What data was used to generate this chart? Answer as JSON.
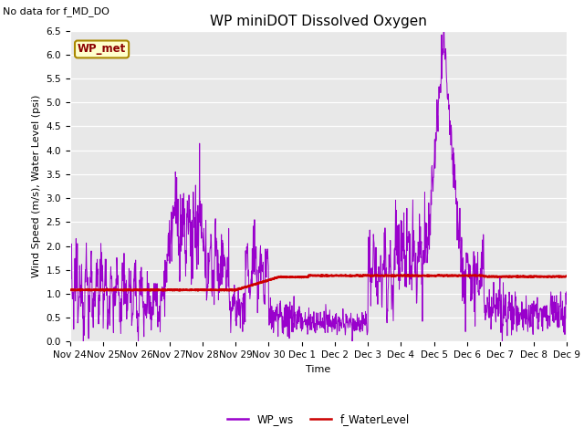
{
  "title": "WP miniDOT Dissolved Oxygen",
  "top_left_text": "No data for f_MD_DO",
  "ylabel": "Wind Speed (m/s), Water Level (psi)",
  "xlabel": "Time",
  "ylim": [
    0.0,
    6.5
  ],
  "yticks": [
    0.0,
    0.5,
    1.0,
    1.5,
    2.0,
    2.5,
    3.0,
    3.5,
    4.0,
    4.5,
    5.0,
    5.5,
    6.0,
    6.5
  ],
  "bg_color": "#e8e8e8",
  "wp_ws_color": "#9900cc",
  "f_wl_color": "#cc0000",
  "inset_label": "WP_met",
  "inset_bg": "#ffffcc",
  "inset_border": "#aa8800",
  "legend_ws_label": "WP_ws",
  "legend_wl_label": "f_WaterLevel",
  "title_fontsize": 11,
  "label_fontsize": 8,
  "tick_fontsize": 7.5,
  "tick_labels": [
    "Nov 24",
    "Nov 25",
    "Nov 26",
    "Nov 27",
    "Nov 28",
    "Nov 29",
    "Nov 30",
    "Dec 1",
    "Dec 2",
    "Dec 3",
    "Dec 4",
    "Dec 5",
    "Dec 6",
    "Dec 7",
    "Dec 8",
    "Dec 9"
  ]
}
